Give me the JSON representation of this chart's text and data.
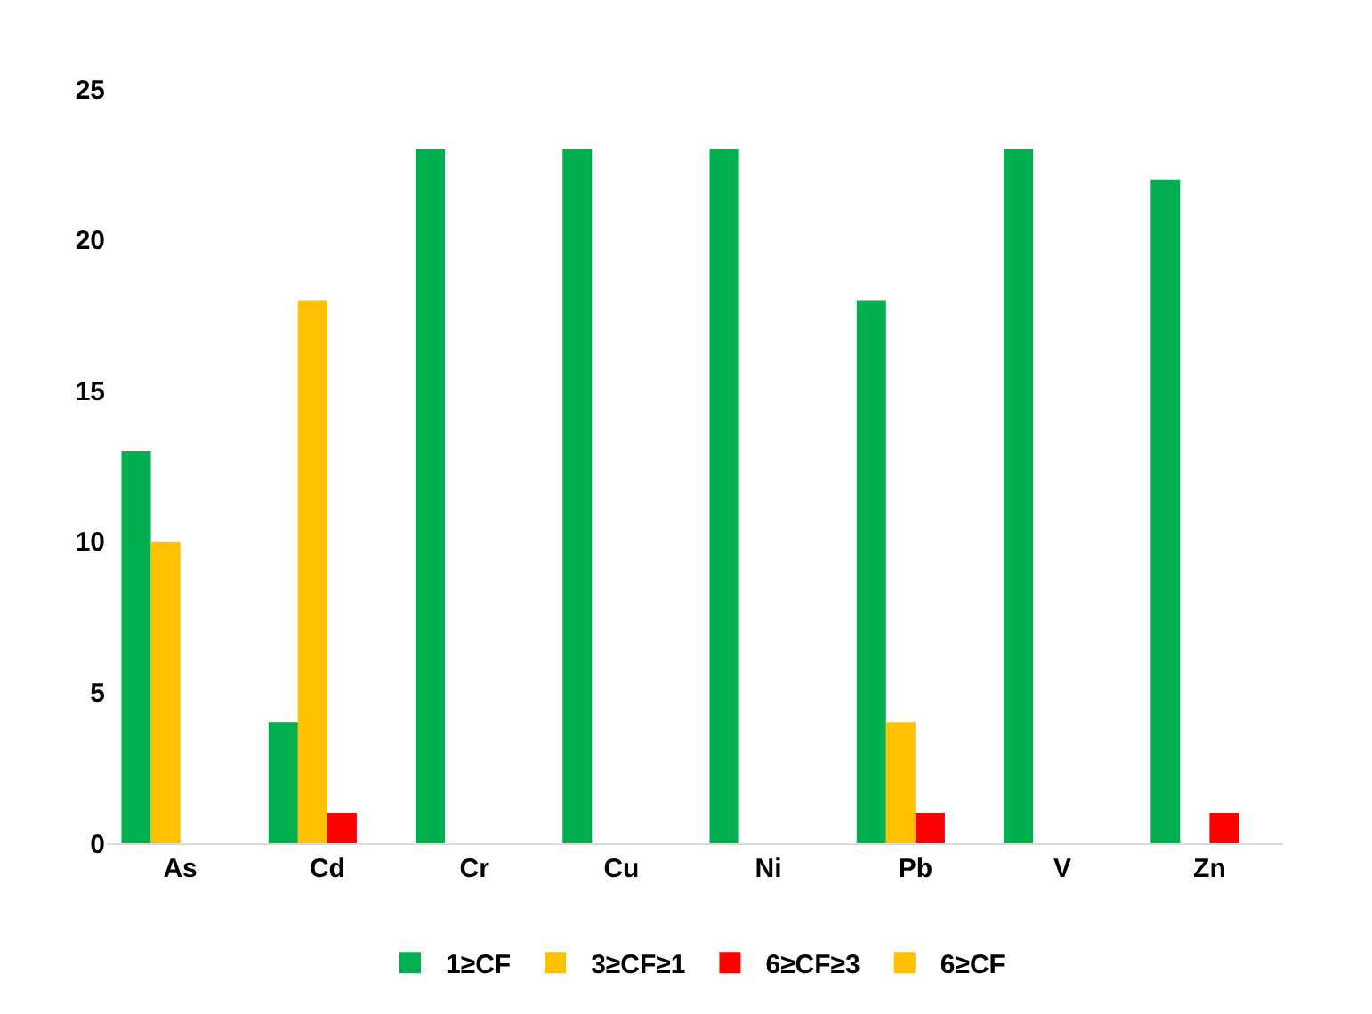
{
  "chart_data": {
    "type": "bar",
    "categories": [
      "As",
      "Cd",
      "Cr",
      "Cu",
      "Ni",
      "Pb",
      "V",
      "Zn"
    ],
    "series": [
      {
        "name": "1≥CF",
        "color": "#00b050",
        "values": [
          13,
          4,
          23,
          23,
          23,
          18,
          23,
          22
        ]
      },
      {
        "name": "3≥CF≥1",
        "color": "#ffc000",
        "values": [
          10,
          18,
          0,
          0,
          0,
          4,
          0,
          0
        ]
      },
      {
        "name": "6≥CF≥3",
        "color": "#ff0000",
        "values": [
          0,
          1,
          0,
          0,
          0,
          1,
          0,
          1
        ]
      },
      {
        "name": "6≥CF",
        "color": "#ffc000",
        "values": [
          0,
          0,
          0,
          0,
          0,
          0,
          0,
          0
        ]
      }
    ],
    "ylim": [
      0,
      25
    ],
    "yticks": [
      0,
      5,
      10,
      15,
      20,
      25
    ],
    "legend": "bottom"
  }
}
